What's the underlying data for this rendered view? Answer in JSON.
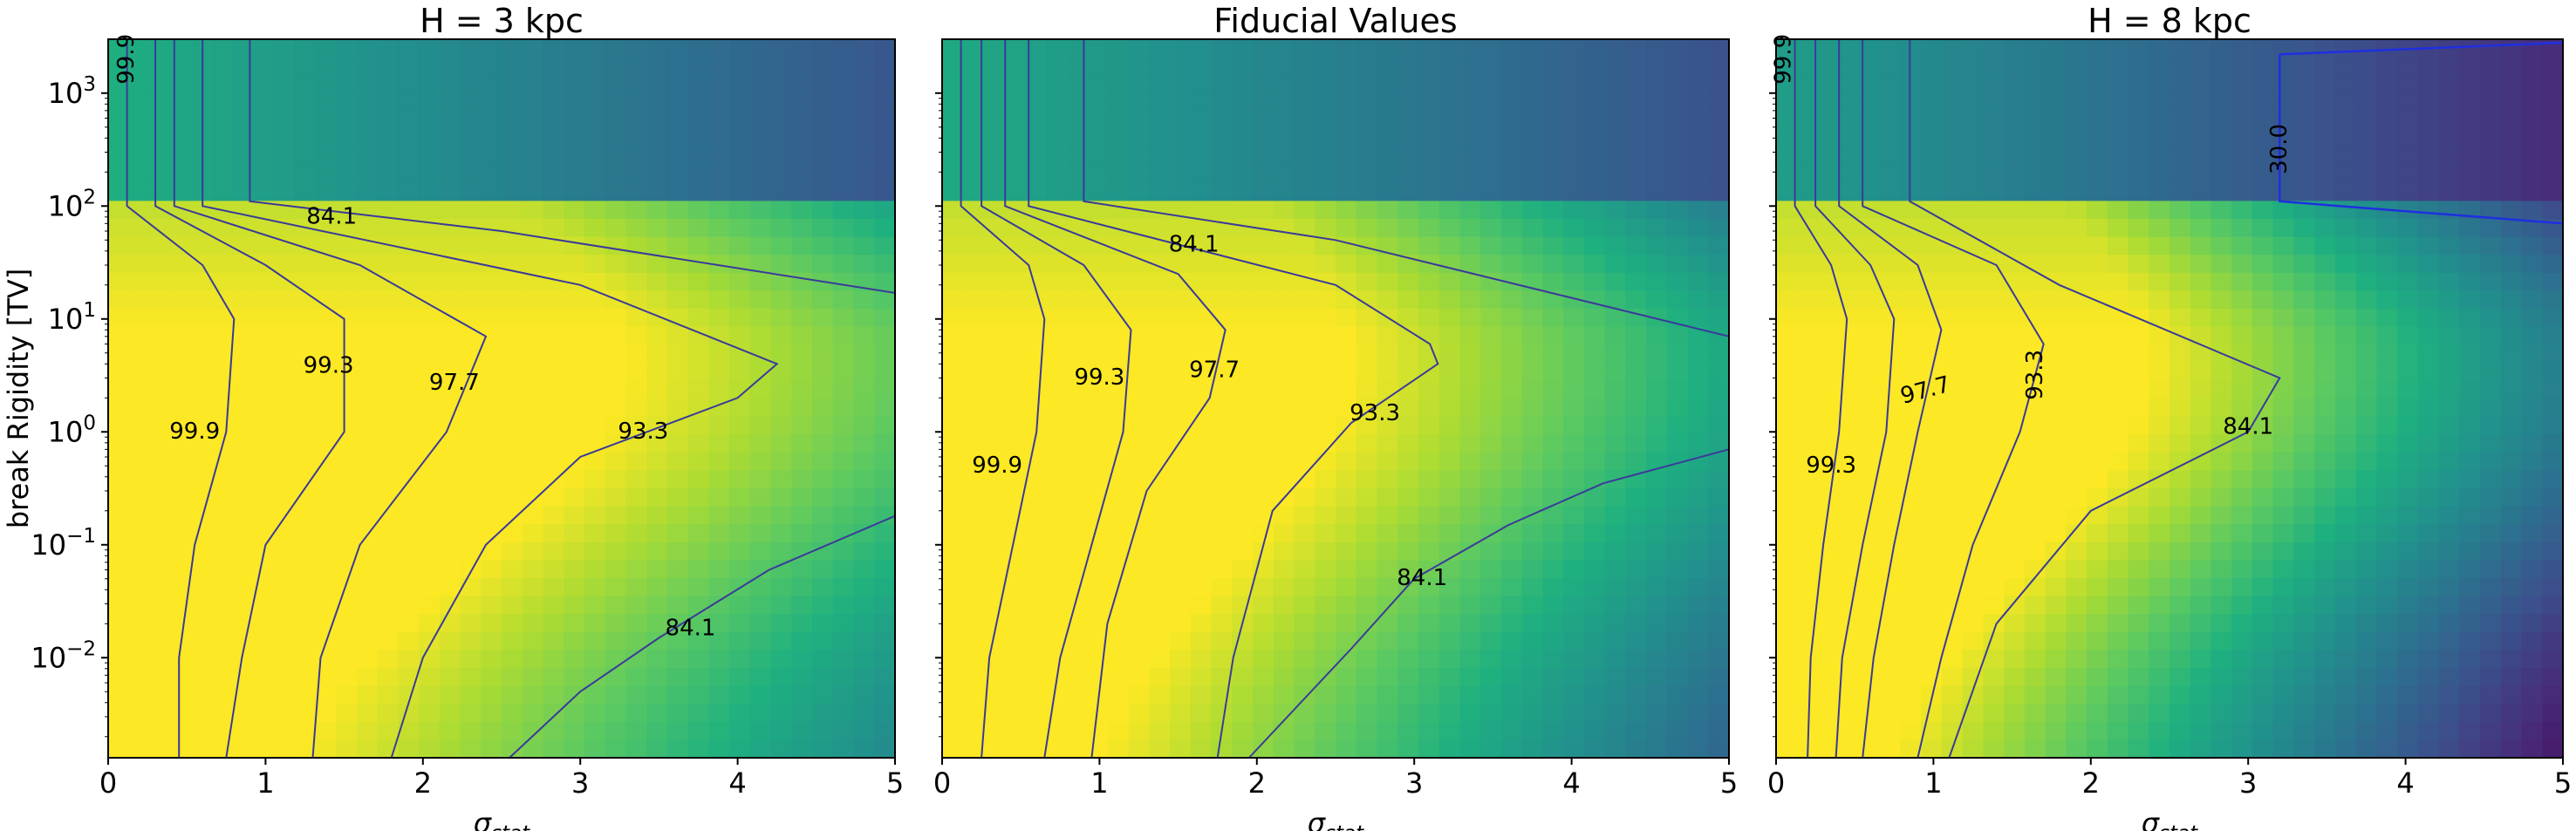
{
  "chart_data": [
    {
      "type": "heatmap",
      "title": "H = 3 kpc",
      "xlabel": "σ",
      "xlabel_sub": "stat",
      "ylabel": "break Rigidity [TV]",
      "xlim": [
        0,
        5
      ],
      "ylim": [
        0.0013,
        3000
      ],
      "yscale": "log",
      "x_ticks": [
        "0",
        "1",
        "2",
        "3",
        "4",
        "5"
      ],
      "y_ticks": [
        {
          "base": "10",
          "exp": "3"
        },
        {
          "base": "10",
          "exp": "2"
        },
        {
          "base": "10",
          "exp": "1"
        },
        {
          "base": "10",
          "exp": "0"
        },
        {
          "base": "10",
          "exp": "−1"
        },
        {
          "base": "10",
          "exp": "−2"
        }
      ],
      "color_scale": "viridis",
      "colors": {
        "low": "#3b528b",
        "mid": "#21918c",
        "high": "#fde725"
      },
      "contours": [
        {
          "level": 99.9,
          "points": [
            [
              0.12,
              3000
            ],
            [
              0.12,
              100
            ],
            [
              0.6,
              30
            ],
            [
              0.8,
              10
            ],
            [
              0.75,
              1
            ],
            [
              0.55,
              0.1
            ],
            [
              0.45,
              0.01
            ],
            [
              0.45,
              0.0013
            ]
          ]
        },
        {
          "level": 99.3,
          "points": [
            [
              0.3,
              3000
            ],
            [
              0.3,
              100
            ],
            [
              1.0,
              30
            ],
            [
              1.5,
              10
            ],
            [
              1.5,
              1
            ],
            [
              1.0,
              0.1
            ],
            [
              0.85,
              0.01
            ],
            [
              0.75,
              0.0013
            ]
          ]
        },
        {
          "level": 97.7,
          "points": [
            [
              0.42,
              3000
            ],
            [
              0.42,
              100
            ],
            [
              1.6,
              30
            ],
            [
              2.4,
              7
            ],
            [
              2.15,
              1
            ],
            [
              1.6,
              0.1
            ],
            [
              1.35,
              0.01
            ],
            [
              1.3,
              0.0013
            ]
          ]
        },
        {
          "level": 93.3,
          "points": [
            [
              0.6,
              3000
            ],
            [
              0.6,
              100
            ],
            [
              3.0,
              20
            ],
            [
              4.25,
              4
            ],
            [
              4.0,
              2
            ],
            [
              3.0,
              0.6
            ],
            [
              2.4,
              0.1
            ],
            [
              2.0,
              0.01
            ],
            [
              1.8,
              0.0013
            ]
          ]
        },
        {
          "level": 84.1,
          "points": [
            [
              0.9,
              3000
            ],
            [
              0.9,
              110
            ],
            [
              2.5,
              60
            ],
            [
              5.0,
              17
            ]
          ]
        },
        {
          "level": 84.1,
          "points": [
            [
              2.55,
              0.0013
            ],
            [
              3.0,
              0.005
            ],
            [
              3.5,
              0.015
            ],
            [
              4.2,
              0.06
            ],
            [
              5.0,
              0.18
            ]
          ]
        }
      ],
      "contour_labels": [
        {
          "text": "99.9",
          "x": 0.12,
          "y": 2000,
          "rotation": -90
        },
        {
          "text": "84.1",
          "x": 1.42,
          "y": 80
        },
        {
          "text": "99.3",
          "x": 1.4,
          "y": 3.8
        },
        {
          "text": "97.7",
          "x": 2.2,
          "y": 2.7
        },
        {
          "text": "99.9",
          "x": 0.55,
          "y": 1.0
        },
        {
          "text": "93.3",
          "x": 3.4,
          "y": 1.0
        },
        {
          "text": "84.1",
          "x": 3.7,
          "y": 0.018
        }
      ]
    },
    {
      "type": "heatmap",
      "title": "Fiducial Values",
      "xlabel": "σ",
      "xlabel_sub": "stat",
      "xlim": [
        0,
        5
      ],
      "ylim": [
        0.0013,
        3000
      ],
      "yscale": "log",
      "x_ticks": [
        "0",
        "1",
        "2",
        "3",
        "4",
        "5"
      ],
      "color_scale": "viridis",
      "contours": [
        {
          "level": 99.9,
          "points": [
            [
              0.12,
              3000
            ],
            [
              0.12,
              100
            ],
            [
              0.55,
              30
            ],
            [
              0.65,
              10
            ],
            [
              0.6,
              1
            ],
            [
              0.45,
              0.1
            ],
            [
              0.3,
              0.01
            ],
            [
              0.25,
              0.0013
            ]
          ]
        },
        {
          "level": 99.3,
          "points": [
            [
              0.25,
              3000
            ],
            [
              0.25,
              100
            ],
            [
              0.9,
              30
            ],
            [
              1.2,
              8
            ],
            [
              1.15,
              1
            ],
            [
              0.95,
              0.1
            ],
            [
              0.75,
              0.01
            ],
            [
              0.65,
              0.0013
            ]
          ]
        },
        {
          "level": 97.7,
          "points": [
            [
              0.4,
              3000
            ],
            [
              0.4,
              100
            ],
            [
              1.5,
              25
            ],
            [
              1.8,
              8
            ],
            [
              1.7,
              2
            ],
            [
              1.3,
              0.3
            ],
            [
              1.05,
              0.02
            ],
            [
              0.95,
              0.0013
            ]
          ]
        },
        {
          "level": 93.3,
          "points": [
            [
              0.55,
              3000
            ],
            [
              0.55,
              100
            ],
            [
              2.5,
              20
            ],
            [
              3.1,
              6
            ],
            [
              3.15,
              4
            ],
            [
              2.6,
              1.2
            ],
            [
              2.1,
              0.2
            ],
            [
              1.85,
              0.01
            ],
            [
              1.75,
              0.0013
            ]
          ]
        },
        {
          "level": 84.1,
          "points": [
            [
              0.9,
              3000
            ],
            [
              0.9,
              110
            ],
            [
              2.5,
              50
            ],
            [
              5.0,
              7
            ]
          ]
        },
        {
          "level": 84.1,
          "points": [
            [
              1.95,
              0.0013
            ],
            [
              2.6,
              0.012
            ],
            [
              3.0,
              0.05
            ],
            [
              3.6,
              0.15
            ],
            [
              4.2,
              0.35
            ],
            [
              5.0,
              0.7
            ]
          ]
        }
      ],
      "contour_labels": [
        {
          "text": "84.1",
          "x": 1.6,
          "y": 45
        },
        {
          "text": "99.3",
          "x": 1.0,
          "y": 3.0
        },
        {
          "text": "97.7",
          "x": 1.73,
          "y": 3.5
        },
        {
          "text": "99.9",
          "x": 0.35,
          "y": 0.5
        },
        {
          "text": "93.3",
          "x": 2.75,
          "y": 1.45
        },
        {
          "text": "84.1",
          "x": 3.05,
          "y": 0.05
        }
      ]
    },
    {
      "type": "heatmap",
      "title": "H = 8 kpc",
      "xlabel": "σ",
      "xlabel_sub": "stat",
      "xlim": [
        0,
        5
      ],
      "ylim": [
        0.0013,
        3000
      ],
      "yscale": "log",
      "x_ticks": [
        "0",
        "1",
        "2",
        "3",
        "4",
        "5"
      ],
      "color_scale": "viridis",
      "contours": [
        {
          "level": 99.9,
          "points": [
            [
              0.12,
              3000
            ],
            [
              0.12,
              100
            ],
            [
              0.35,
              30
            ],
            [
              0.45,
              10
            ],
            [
              0.4,
              1
            ],
            [
              0.3,
              0.1
            ],
            [
              0.22,
              0.01
            ],
            [
              0.2,
              0.0013
            ]
          ]
        },
        {
          "level": 99.3,
          "points": [
            [
              0.25,
              3000
            ],
            [
              0.25,
              100
            ],
            [
              0.6,
              30
            ],
            [
              0.75,
              10
            ],
            [
              0.7,
              1
            ],
            [
              0.55,
              0.1
            ],
            [
              0.42,
              0.01
            ],
            [
              0.38,
              0.0013
            ]
          ]
        },
        {
          "level": 97.7,
          "points": [
            [
              0.4,
              3000
            ],
            [
              0.4,
              100
            ],
            [
              0.9,
              30
            ],
            [
              1.05,
              8
            ],
            [
              0.9,
              1
            ],
            [
              0.75,
              0.1
            ],
            [
              0.62,
              0.01
            ],
            [
              0.55,
              0.0013
            ]
          ]
        },
        {
          "level": 93.3,
          "points": [
            [
              0.55,
              3000
            ],
            [
              0.55,
              100
            ],
            [
              1.4,
              30
            ],
            [
              1.7,
              6
            ],
            [
              1.55,
              1
            ],
            [
              1.25,
              0.1
            ],
            [
              1.05,
              0.01
            ],
            [
              0.9,
              0.0013
            ]
          ]
        },
        {
          "level": 84.1,
          "points": [
            [
              0.85,
              3000
            ],
            [
              0.85,
              110
            ],
            [
              1.8,
              20
            ],
            [
              3.2,
              3
            ],
            [
              3.0,
              1
            ],
            [
              2.0,
              0.2
            ],
            [
              1.4,
              0.02
            ],
            [
              1.1,
              0.0013
            ]
          ]
        },
        {
          "level": 30.0,
          "points": [
            [
              3.2,
              2200
            ],
            [
              3.2,
              110
            ],
            [
              5.0,
              70
            ]
          ],
          "blue": true
        },
        {
          "level": 30.0,
          "points": [
            [
              3.2,
              2200
            ],
            [
              5.0,
              2800
            ]
          ],
          "blue": true
        }
      ],
      "contour_labels": [
        {
          "text": "99.9",
          "x": 0.05,
          "y": 2000,
          "rotation": -90
        },
        {
          "text": "30.0",
          "x": 3.2,
          "y": 320,
          "rotation": -90
        },
        {
          "text": "97.7",
          "x": 0.95,
          "y": 2.3,
          "rotation": -15
        },
        {
          "text": "93.3",
          "x": 1.65,
          "y": 3.2,
          "rotation": -90
        },
        {
          "text": "99.3",
          "x": 0.35,
          "y": 0.5
        },
        {
          "text": "84.1",
          "x": 3.0,
          "y": 1.1
        }
      ]
    }
  ]
}
